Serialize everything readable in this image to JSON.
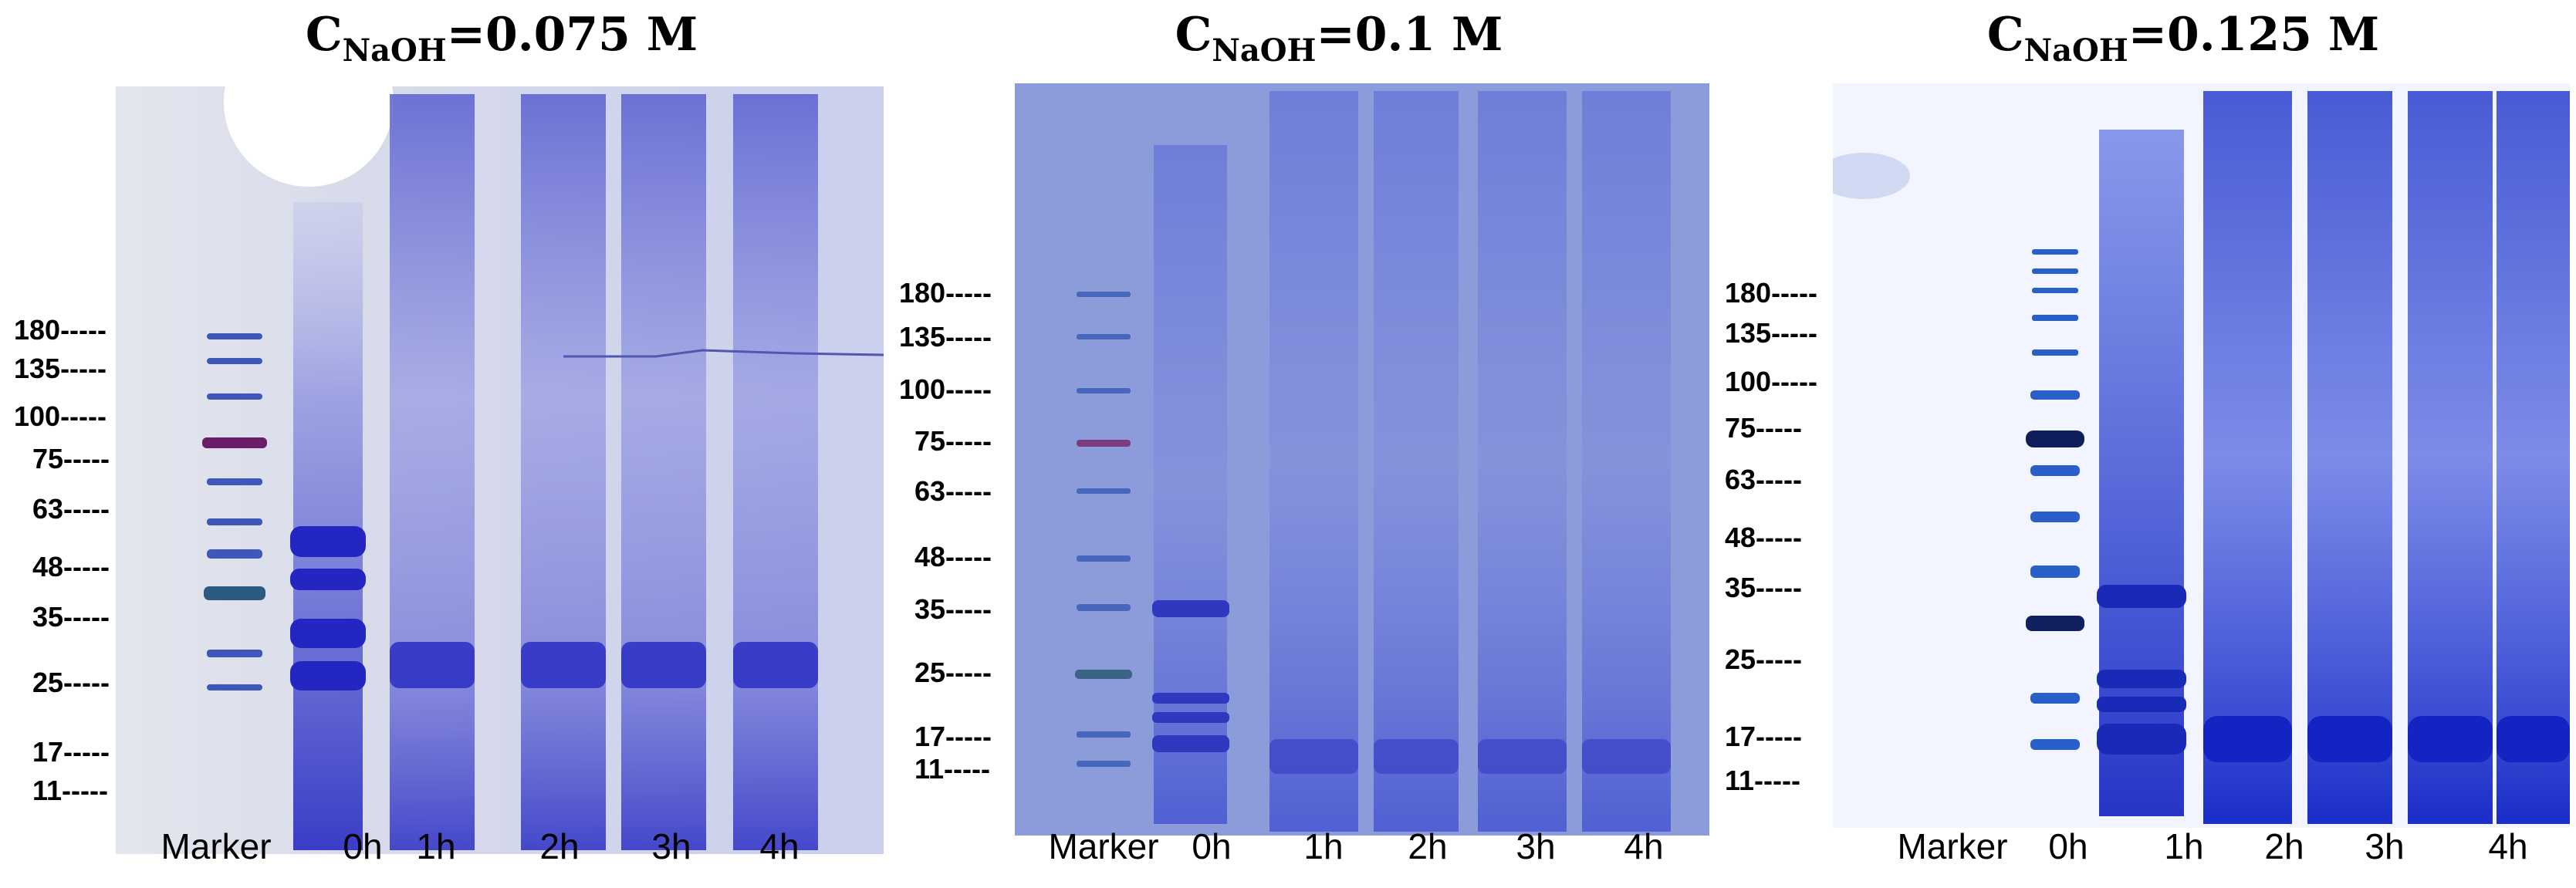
{
  "panels": [
    {
      "title_main": "C",
      "title_sub": "NaOH",
      "title_value": "=0.075 M",
      "markers": [
        "180-----",
        "135-----",
        "100-----",
        "75-----",
        "63-----",
        "48-----",
        "35-----",
        "25-----",
        "17-----",
        "11-----"
      ],
      "lanes": [
        "Marker",
        "0h",
        "1h",
        "2h",
        "3h",
        "4h"
      ]
    },
    {
      "title_main": "C",
      "title_sub": "NaOH",
      "title_value": "=0.1 M",
      "markers": [
        "180-----",
        "135-----",
        "100-----",
        "75-----",
        "63-----",
        "48-----",
        "35-----",
        "25-----",
        "17-----",
        "11-----"
      ],
      "lanes": [
        "Marker",
        "0h",
        "1h",
        "2h",
        "3h",
        "4h"
      ]
    },
    {
      "title_main": "C",
      "title_sub": "NaOH",
      "title_value": "=0.125 M",
      "markers": [
        "180-----",
        "135-----",
        "100-----",
        "75-----",
        "63-----",
        "48-----",
        "35-----",
        "25-----",
        "17-----",
        "11-----"
      ],
      "lanes": [
        "Marker",
        "0h",
        "1h",
        "2h",
        "3h",
        "4h"
      ]
    }
  ],
  "colors": {
    "gel_background_1": "#dfe3ee",
    "gel_background_2": "#7f92d6",
    "gel_background_3": "#ffffff",
    "stain": "#2a2fc4",
    "marker_red_band": "#6a1e6a"
  }
}
